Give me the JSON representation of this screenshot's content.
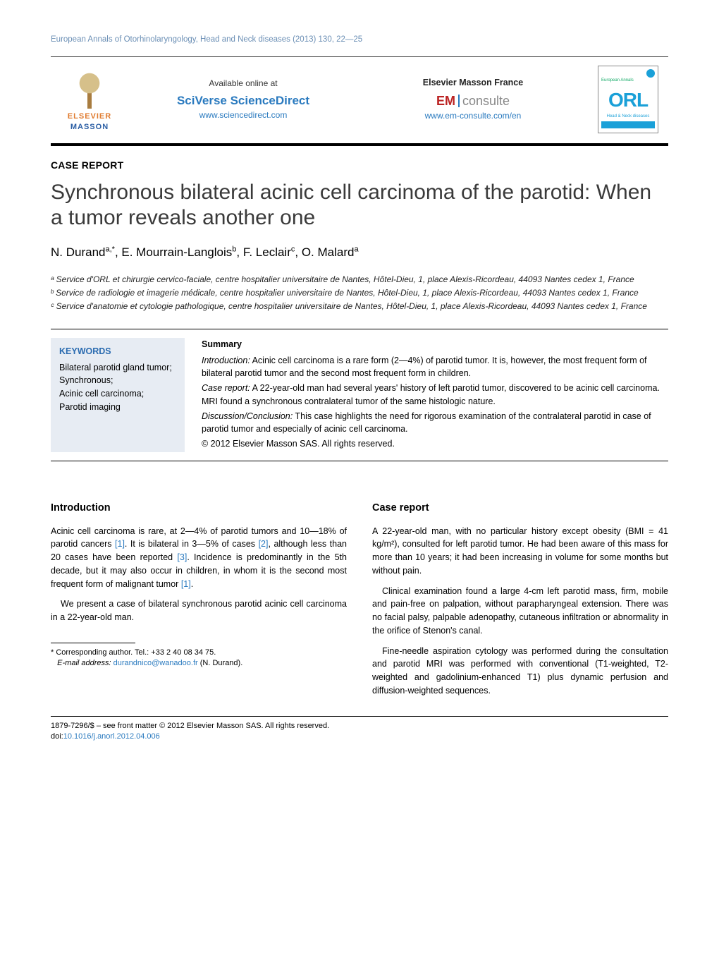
{
  "runningHead": "European Annals of Otorhinolaryngology, Head and Neck diseases (2013) 130, 22—25",
  "masthead": {
    "elsevier_line1": "ELSEVIER",
    "elsevier_line2": "MASSON",
    "available_label": "Available online at",
    "sciverse": "SciVerse ScienceDirect",
    "sd_url": "www.sciencedirect.com",
    "em_publisher": "Elsevier Masson France",
    "em_brand_em": "EM",
    "em_brand_cons": "consulte",
    "em_url": "www.em-consulte.com/en",
    "cover_small": "European Annals",
    "cover_big": "ORL",
    "cover_sub": "Head & Neck diseases"
  },
  "article": {
    "section_label": "CASE REPORT",
    "title": "Synchronous bilateral acinic cell carcinoma of the parotid: When a tumor reveals another one",
    "authors_html": "N. Durand<sup>a,*</sup>, E. Mourrain-Langlois<sup>b</sup>, F. Leclair<sup>c</sup>, O. Malard<sup>a</sup>",
    "affiliations": [
      "ᵃ Service d'ORL et chirurgie cervico-faciale, centre hospitalier universitaire de Nantes, Hôtel-Dieu, 1, place Alexis-Ricordeau, 44093 Nantes cedex 1, France",
      "ᵇ Service de radiologie et imagerie médicale, centre hospitalier universitaire de Nantes, Hôtel-Dieu, 1, place Alexis-Ricordeau, 44093 Nantes cedex 1, France",
      "ᶜ Service d'anatomie et cytologie pathologique, centre hospitalier universitaire de Nantes, Hôtel-Dieu, 1, place Alexis-Ricordeau, 44093 Nantes cedex 1, France"
    ],
    "keywords_head": "KEYWORDS",
    "keywords": "Bilateral parotid gland tumor;\nSynchronous;\nAcinic cell carcinoma;\nParotid imaging",
    "summary_head": "Summary",
    "summary": {
      "intro_label": "Introduction:",
      "intro": " Acinic cell carcinoma is a rare form (2—4%) of parotid tumor. It is, however, the most frequent form of bilateral parotid tumor and the second most frequent form in children.",
      "case_label": "Case report:",
      "case": " A 22-year-old man had several years' history of left parotid tumor, discovered to be acinic cell carcinoma. MRI found a synchronous contralateral tumor of the same histologic nature.",
      "disc_label": "Discussion/Conclusion:",
      "disc": " This case highlights the need for rigorous examination of the contralateral parotid in case of parotid tumor and especially of acinic cell carcinoma.",
      "copyright": "© 2012 Elsevier Masson SAS. All rights reserved."
    }
  },
  "body": {
    "intro_head": "Introduction",
    "intro_p1a": "Acinic cell carcinoma is rare, at 2—4% of parotid tumors and 10—18% of parotid cancers ",
    "ref1": "[1]",
    "intro_p1b": ". It is bilateral in 3—5% of cases ",
    "ref2": "[2]",
    "intro_p1c": ", although less than 20 cases have been reported ",
    "ref3": "[3]",
    "intro_p1d": ". Incidence is predominantly in the 5th decade, but it may also occur in children, in whom it is the second most frequent form of malignant tumor ",
    "ref1b": "[1]",
    "intro_p1e": ".",
    "intro_p2": "We present a case of bilateral synchronous parotid acinic cell carcinoma in a 22-year-old man.",
    "case_head": "Case report",
    "case_p1": "A 22-year-old man, with no particular history except obesity (BMI = 41 kg/m²), consulted for left parotid tumor. He had been aware of this mass for more than 10 years; it had been increasing in volume for some months but without pain.",
    "case_p2": "Clinical examination found a large 4-cm left parotid mass, firm, mobile and pain-free on palpation, without parapharyngeal extension. There was no facial palsy, palpable adenopathy, cutaneous infiltration or abnormality in the orifice of Stenon's canal.",
    "case_p3": "Fine-needle aspiration cytology was performed during the consultation and parotid MRI was performed with conventional (T1-weighted, T2-weighted and gadolinium-enhanced T1) plus dynamic perfusion and diffusion-weighted sequences."
  },
  "correspondence": {
    "star": "*",
    "line1": " Corresponding author. Tel.: +33 2 40 08 34 75.",
    "email_label": "E-mail address: ",
    "email": "durandnico@wanadoo.fr",
    "email_tail": " (N. Durand)."
  },
  "footer": {
    "line1": "1879-7296/$ – see front matter © 2012 Elsevier Masson SAS. All rights reserved.",
    "doi_label": "doi:",
    "doi": "10.1016/j.anorl.2012.04.006"
  },
  "colors": {
    "link": "#2a7abf",
    "kw_bg": "#e7ecf3",
    "kw_head": "#2a6bb0",
    "elsevier_orange": "#e07b2f",
    "masson_blue": "#2c5fa5",
    "orl_blue": "#1aa0d8"
  }
}
